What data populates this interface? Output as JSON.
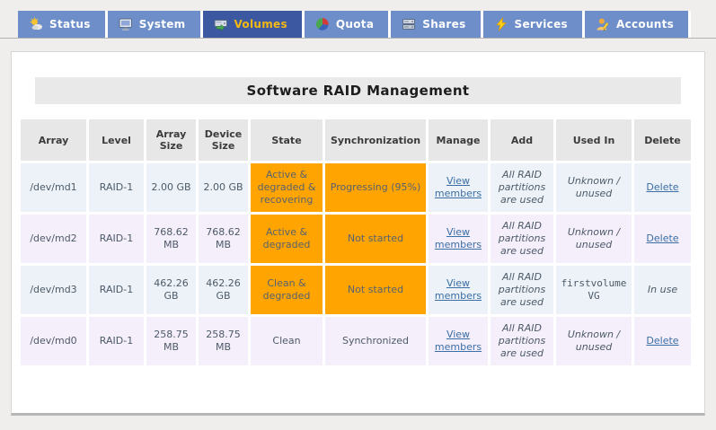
{
  "tab_bar": {
    "tabs": [
      {
        "label": "Status",
        "icon": "weather-status-icon",
        "active": false
      },
      {
        "label": "System",
        "icon": "monitor-icon",
        "active": false
      },
      {
        "label": "Volumes",
        "icon": "disk-drive-icon",
        "active": true
      },
      {
        "label": "Quota",
        "icon": "pie-chart-icon",
        "active": false
      },
      {
        "label": "Shares",
        "icon": "server-stack-icon",
        "active": false
      },
      {
        "label": "Services",
        "icon": "lightning-icon",
        "active": false
      },
      {
        "label": "Accounts",
        "icon": "user-icon",
        "active": false
      }
    ]
  },
  "page": {
    "title": "Software RAID Management"
  },
  "colors": {
    "alert_orange": "#FFA400",
    "tab_active_bg": "#3B58A0",
    "tab_inactive_bg": "#6D8EC9",
    "tab_active_text": "#F5B913",
    "link_blue": "#3A6EA5",
    "row_blue": "#ECF2F7",
    "row_lavender": "#F5EEFB",
    "header_gray": "#E7E7E7"
  },
  "raid_table": {
    "headers": [
      "Array",
      "Level",
      "Array Size",
      "Device Size",
      "State",
      "Synchronization",
      "Manage",
      "Add",
      "Used In",
      "Delete"
    ],
    "rows": [
      {
        "array": "/dev/md1",
        "level": "RAID-1",
        "array_size": "2.00 GB",
        "device_size": "2.00 GB",
        "state": "Active & degraded & recovering",
        "state_alert": true,
        "synchronization": "Progressing (95%)",
        "synchronization_alert": true,
        "manage_link": "View members",
        "add": "All RAID partitions are used",
        "used_in": "Unknown / unused",
        "used_in_mono": false,
        "delete": "Delete",
        "delete_is_link": true
      },
      {
        "array": "/dev/md2",
        "level": "RAID-1",
        "array_size": "768.62 MB",
        "device_size": "768.62 MB",
        "state": "Active & degraded",
        "state_alert": true,
        "synchronization": "Not started",
        "synchronization_alert": true,
        "manage_link": "View members",
        "add": "All RAID partitions are used",
        "used_in": "Unknown / unused",
        "used_in_mono": false,
        "delete": "Delete",
        "delete_is_link": true
      },
      {
        "array": "/dev/md3",
        "level": "RAID-1",
        "array_size": "462.26 GB",
        "device_size": "462.26 GB",
        "state": "Clean & degraded",
        "state_alert": true,
        "synchronization": "Not started",
        "synchronization_alert": true,
        "manage_link": "View members",
        "add": "All RAID partitions are used",
        "used_in": "firstvolume VG",
        "used_in_mono": true,
        "delete": "In use",
        "delete_is_link": false
      },
      {
        "array": "/dev/md0",
        "level": "RAID-1",
        "array_size": "258.75 MB",
        "device_size": "258.75 MB",
        "state": "Clean",
        "state_alert": false,
        "synchronization": "Synchronized",
        "synchronization_alert": false,
        "manage_link": "View members",
        "add": "All RAID partitions are used",
        "used_in": "Unknown / unused",
        "used_in_mono": false,
        "delete": "Delete",
        "delete_is_link": true
      }
    ]
  }
}
